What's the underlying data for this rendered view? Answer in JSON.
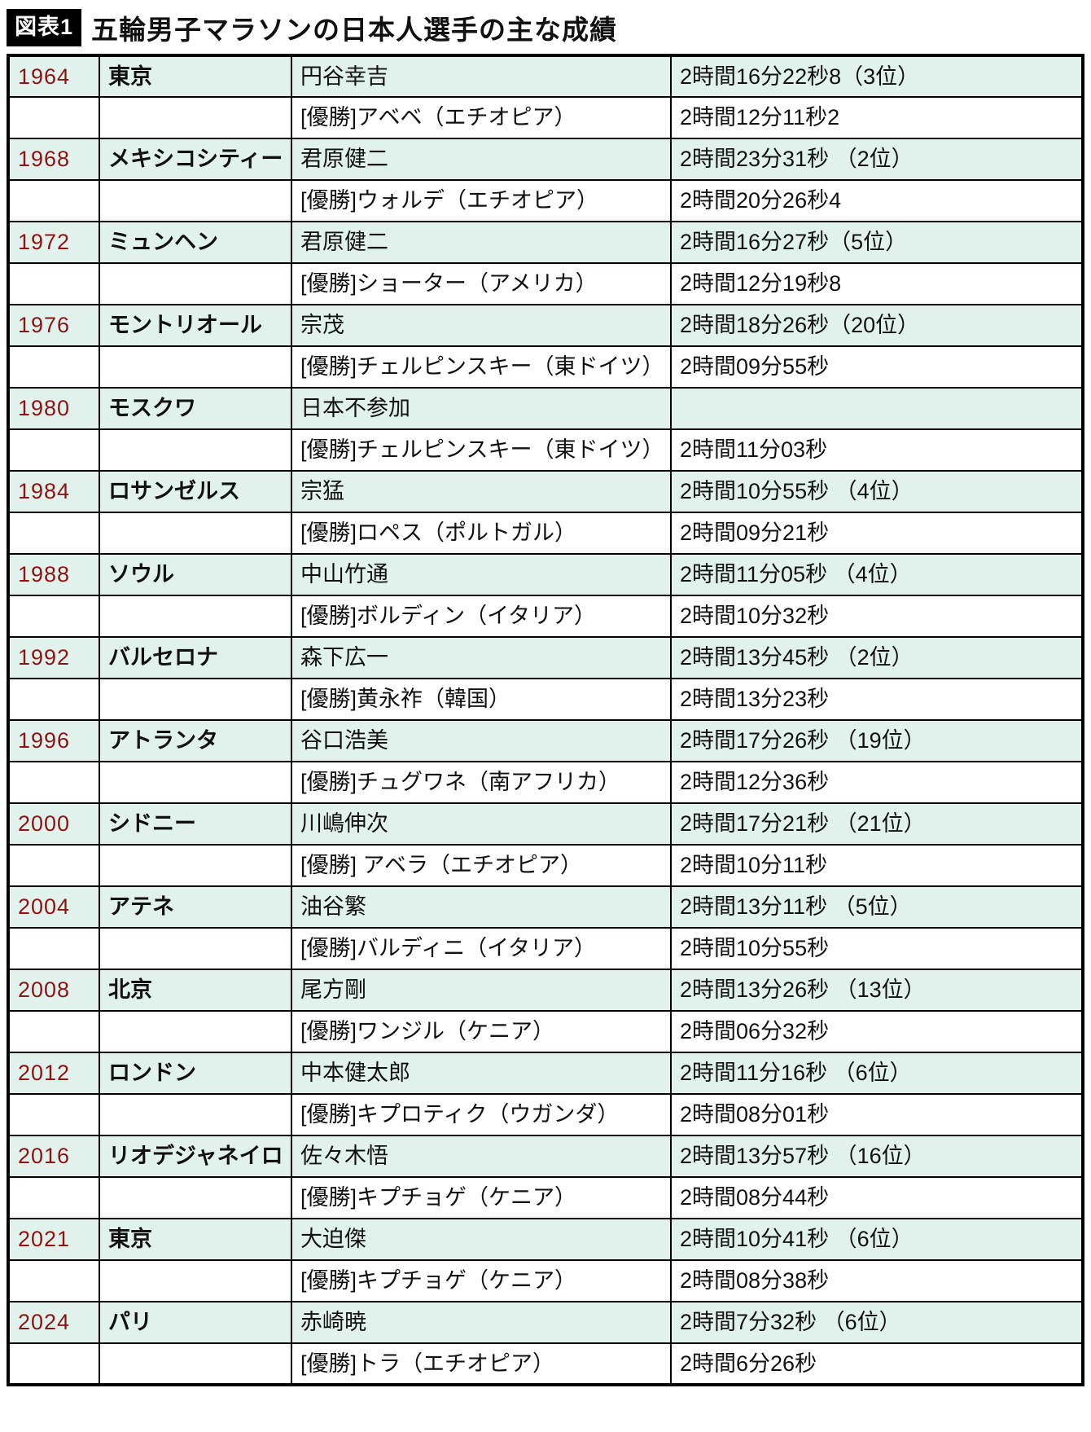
{
  "header": {
    "tag_label": "図表1",
    "title": "五輪男子マラソンの日本人選手の主な成績"
  },
  "colors": {
    "year_text": "#8e1414",
    "highlight_row_bg": "#e1f2ed",
    "winner_row_bg": "#ffffff",
    "border": "#000000",
    "tag_bg": "#000000",
    "tag_text": "#ffffff"
  },
  "chart_data": {
    "type": "table",
    "title": "五輪男子マラソンの日本人選手の主な成績",
    "entries": [
      {
        "year": "1964",
        "city": "東京",
        "japanese": {
          "name": "円谷幸吉",
          "time": "2時間16分22秒8（3位）"
        },
        "winner": {
          "name": "[優勝]アベベ（エチオピア）",
          "time": "2時間12分11秒2"
        }
      },
      {
        "year": "1968",
        "city": "メキシコシティー",
        "japanese": {
          "name": "君原健二",
          "time": "2時間23分31秒 （2位）"
        },
        "winner": {
          "name": "[優勝]ウォルデ（エチオピア）",
          "time": "2時間20分26秒4"
        }
      },
      {
        "year": "1972",
        "city": "ミュンヘン",
        "japanese": {
          "name": "君原健二",
          "time": "2時間16分27秒（5位）"
        },
        "winner": {
          "name": "[優勝]ショーター（アメリカ）",
          "time": "2時間12分19秒8"
        }
      },
      {
        "year": "1976",
        "city": "モントリオール",
        "japanese": {
          "name": "宗茂",
          "time": "2時間18分26秒（20位）"
        },
        "winner": {
          "name": "[優勝]チェルピンスキー（東ドイツ）",
          "time": "2時間09分55秒"
        }
      },
      {
        "year": "1980",
        "city": "モスクワ",
        "japanese": {
          "name": "日本不参加",
          "time": ""
        },
        "winner": {
          "name": "[優勝]チェルピンスキー（東ドイツ）",
          "time": "2時間11分03秒"
        }
      },
      {
        "year": "1984",
        "city": "ロサンゼルス",
        "japanese": {
          "name": "宗猛",
          "time": "2時間10分55秒 （4位）"
        },
        "winner": {
          "name": "[優勝]ロペス（ポルトガル）",
          "time": "2時間09分21秒"
        }
      },
      {
        "year": "1988",
        "city": "ソウル",
        "japanese": {
          "name": "中山竹通",
          "time": "2時間11分05秒 （4位）"
        },
        "winner": {
          "name": "[優勝]ボルディン（イタリア）",
          "time": "2時間10分32秒"
        }
      },
      {
        "year": "1992",
        "city": "バルセロナ",
        "japanese": {
          "name": "森下広一",
          "time": "2時間13分45秒 （2位）"
        },
        "winner": {
          "name": "[優勝]黄永祚（韓国）",
          "time": "2時間13分23秒"
        }
      },
      {
        "year": "1996",
        "city": "アトランタ",
        "japanese": {
          "name": "谷口浩美",
          "time": "2時間17分26秒 （19位）"
        },
        "winner": {
          "name": "[優勝]チュグワネ（南アフリカ）",
          "time": "2時間12分36秒"
        }
      },
      {
        "year": "2000",
        "city": "シドニー",
        "japanese": {
          "name": "川嶋伸次",
          "time": "2時間17分21秒 （21位）"
        },
        "winner": {
          "name": "[優勝] アベラ（エチオピア）",
          "time": "2時間10分11秒"
        }
      },
      {
        "year": "2004",
        "city": "アテネ",
        "japanese": {
          "name": "油谷繁",
          "time": "2時間13分11秒 （5位）"
        },
        "winner": {
          "name": "[優勝]バルディニ（イタリア）",
          "time": "2時間10分55秒"
        }
      },
      {
        "year": "2008",
        "city": "北京",
        "japanese": {
          "name": "尾方剛",
          "time": "2時間13分26秒 （13位）"
        },
        "winner": {
          "name": "[優勝]ワンジル（ケニア）",
          "time": "2時間06分32秒"
        }
      },
      {
        "year": "2012",
        "city": "ロンドン",
        "japanese": {
          "name": "中本健太郎",
          "time": "2時間11分16秒 （6位）"
        },
        "winner": {
          "name": "[優勝]キプロティク（ウガンダ）",
          "time": "2時間08分01秒"
        }
      },
      {
        "year": "2016",
        "city": "リオデジャネイロ",
        "japanese": {
          "name": "佐々木悟",
          "time": "2時間13分57秒 （16位）"
        },
        "winner": {
          "name": "[優勝]キプチョゲ（ケニア）",
          "time": "2時間08分44秒"
        }
      },
      {
        "year": "2021",
        "city": "東京",
        "japanese": {
          "name": "大迫傑",
          "time": "2時間10分41秒 （6位）"
        },
        "winner": {
          "name": "[優勝]キプチョゲ（ケニア）",
          "time": "2時間08分38秒"
        }
      },
      {
        "year": "2024",
        "city": "パリ",
        "japanese": {
          "name": "赤崎暁",
          "time": "2時間7分32秒 （6位）"
        },
        "winner": {
          "name": "[優勝]トラ（エチオピア）",
          "time": "2時間6分26秒"
        }
      }
    ]
  }
}
